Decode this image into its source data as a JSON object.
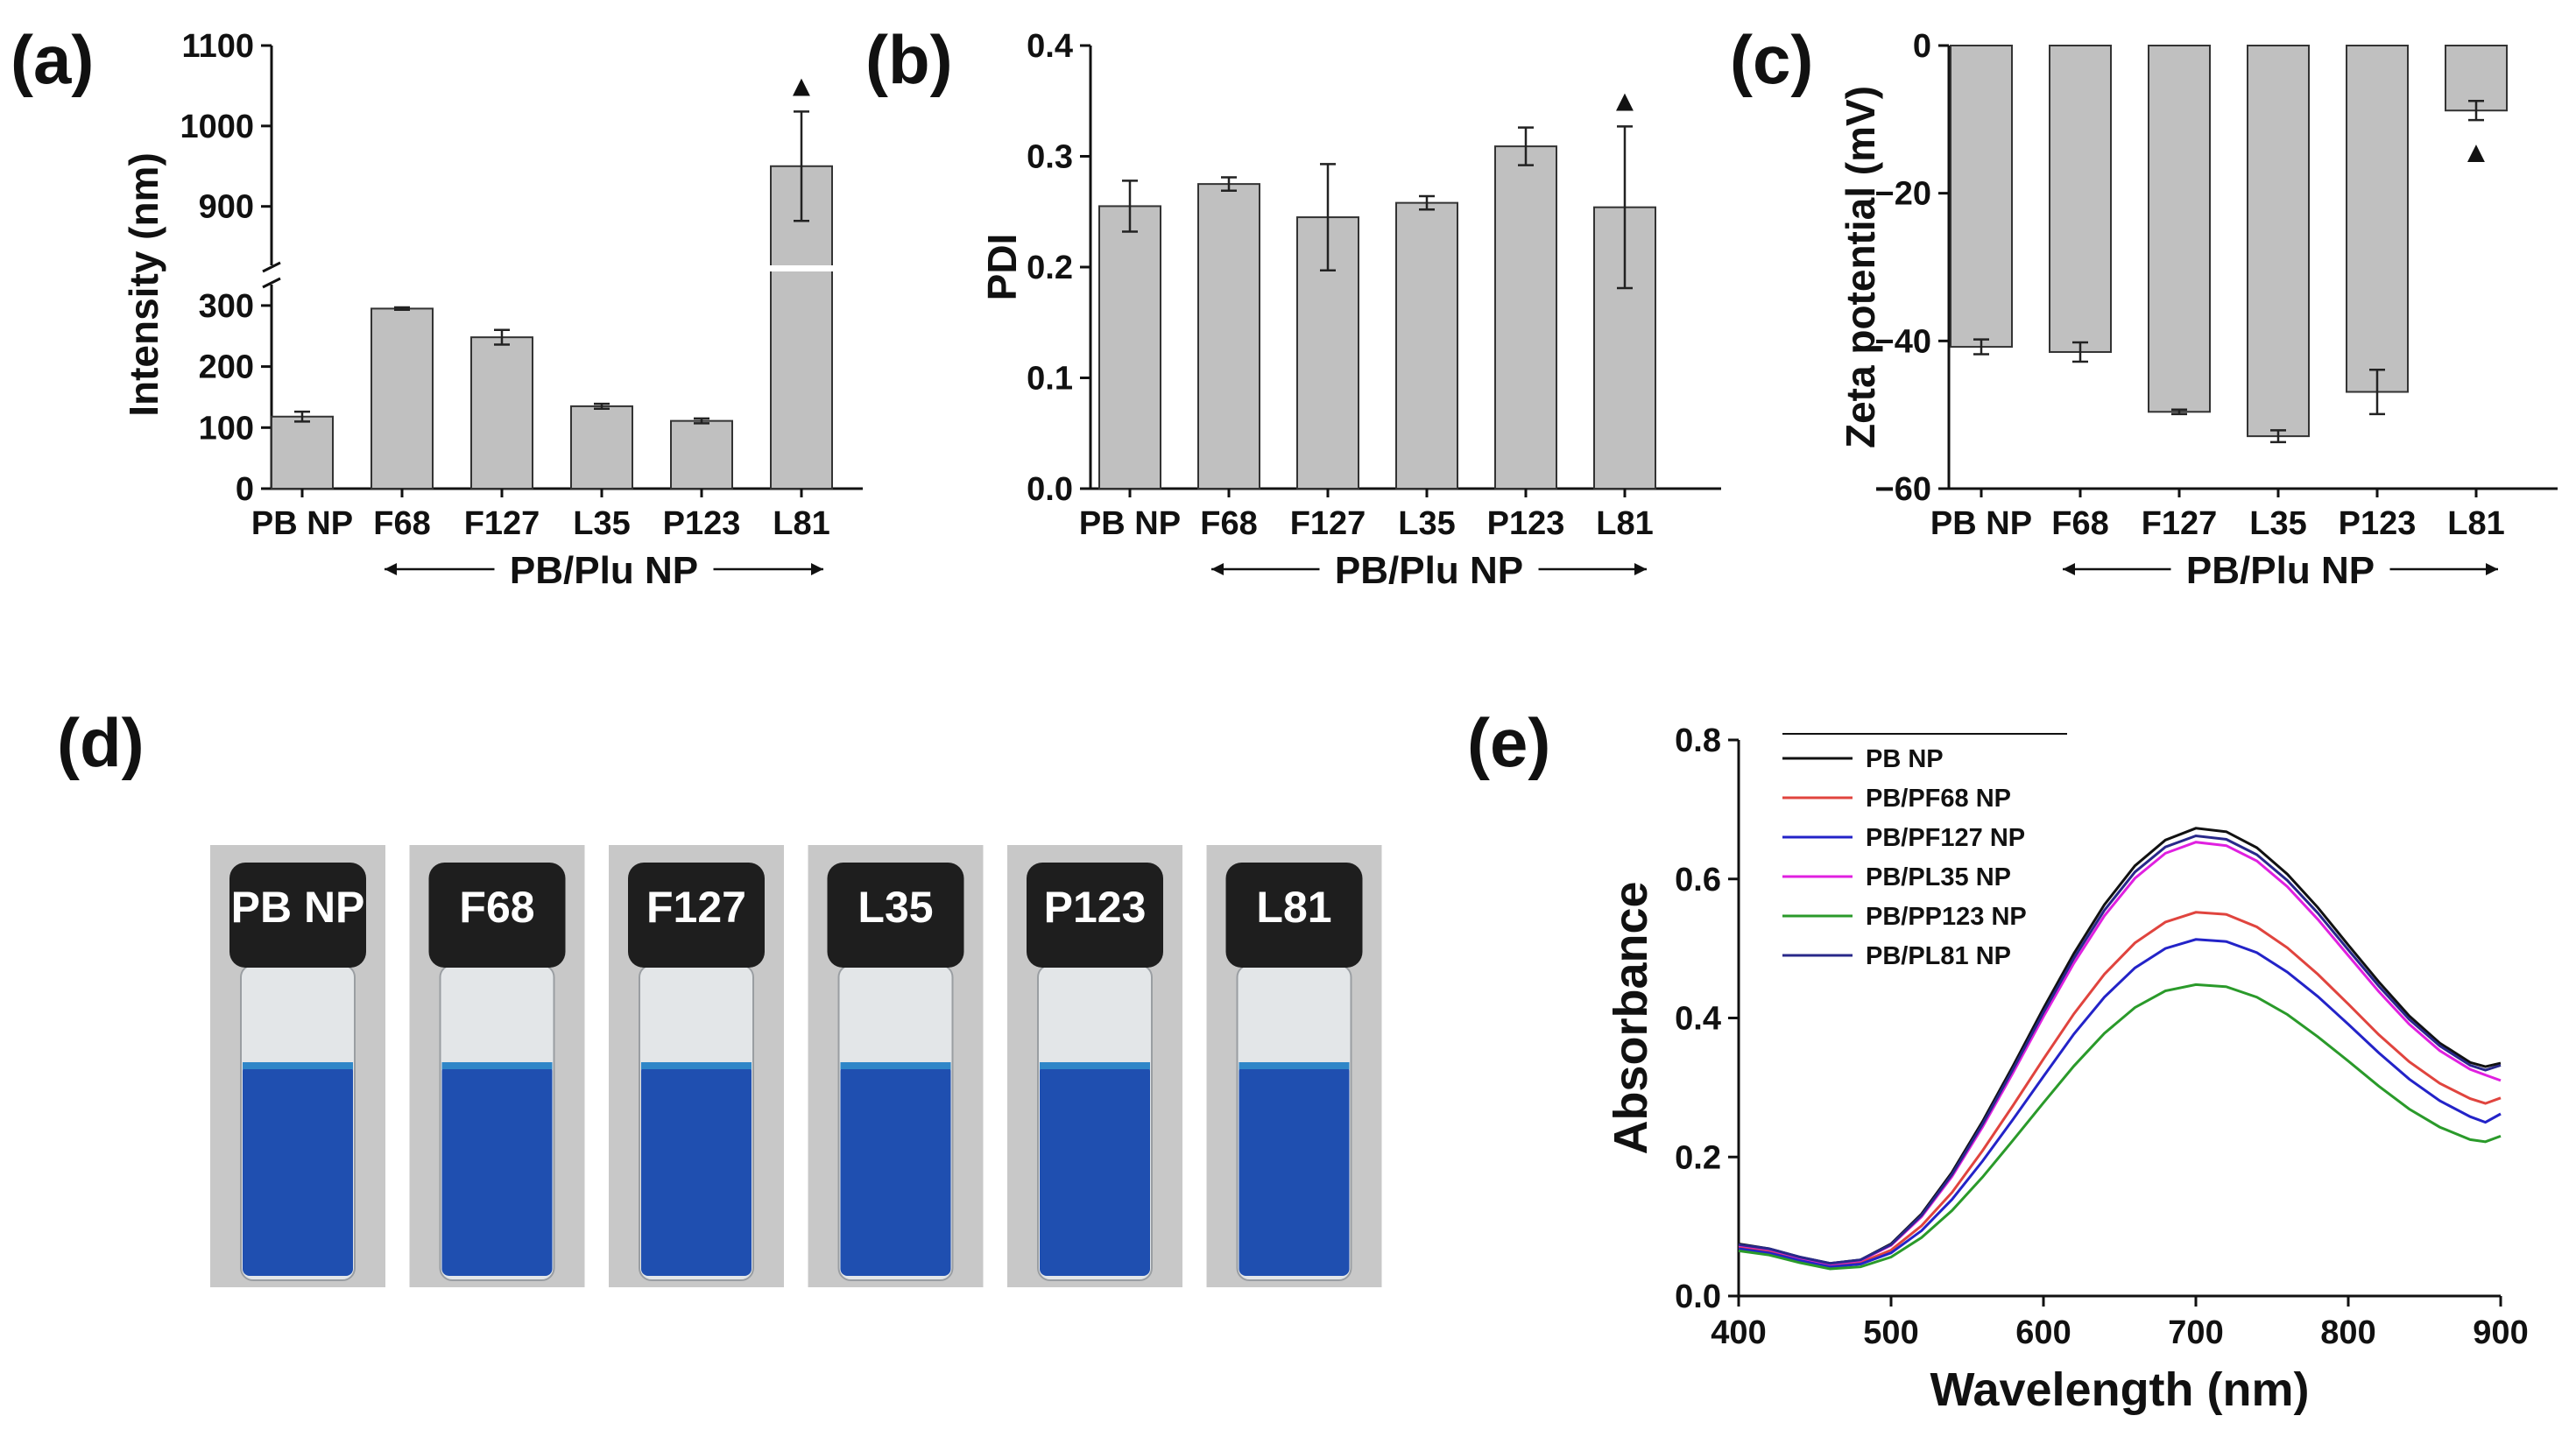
{
  "figure": {
    "panels": {
      "a": "(a)",
      "b": "(b)",
      "c": "(c)",
      "d": "(d)",
      "e": "(e)"
    },
    "colors": {
      "bar_fill": "#c0c0c0",
      "bar_stroke": "#333333",
      "axis": "#111111",
      "vial_background": "#c8c8c8",
      "vial_liquid": "#1f4fb0",
      "vial_cap": "#1e1e1e"
    }
  },
  "chart_data": [
    {
      "id": "a",
      "type": "bar",
      "title": "",
      "xlabel": "",
      "ylabel": "Intensity (nm)",
      "group_label": "PB/Plu NP",
      "group_start": "F68",
      "categories": [
        "PB NP",
        "F68",
        "F127",
        "L35",
        "P123",
        "L81"
      ],
      "values": [
        118,
        295,
        248,
        135,
        111,
        950
      ],
      "errors": [
        8,
        2,
        12,
        4,
        4,
        68
      ],
      "axis_break": {
        "lower_ylim": [
          0,
          330
        ],
        "upper_ylim": [
          830,
          1100
        ]
      },
      "y_ticks": [
        0,
        100,
        200,
        300,
        900,
        1000,
        1100
      ],
      "markers": [
        {
          "category": "L81",
          "symbol": "▲",
          "position": "above"
        }
      ]
    },
    {
      "id": "b",
      "type": "bar",
      "title": "",
      "xlabel": "",
      "ylabel": "PDI",
      "group_label": "PB/Plu NP",
      "group_start": "F68",
      "categories": [
        "PB NP",
        "F68",
        "F127",
        "L35",
        "P123",
        "L81"
      ],
      "values": [
        0.255,
        0.275,
        0.245,
        0.258,
        0.309,
        0.254
      ],
      "errors": [
        0.023,
        0.006,
        0.048,
        0.006,
        0.017,
        0.073
      ],
      "ylim": [
        0,
        0.4
      ],
      "y_ticks": [
        "0.0",
        "0.1",
        "0.2",
        "0.3",
        "0.4"
      ],
      "markers": [
        {
          "category": "L81",
          "symbol": "▲",
          "position": "above"
        }
      ]
    },
    {
      "id": "c",
      "type": "bar",
      "title": "",
      "xlabel": "",
      "ylabel": "Zeta potential (mV)",
      "group_label": "PB/Plu NP",
      "group_start": "F68",
      "categories": [
        "PB NP",
        "F68",
        "F127",
        "L35",
        "P123",
        "L81"
      ],
      "values": [
        -40.8,
        -41.5,
        -49.6,
        -52.9,
        -46.9,
        -8.8
      ],
      "errors": [
        1.0,
        1.3,
        0.3,
        0.8,
        3.0,
        1.3
      ],
      "ylim": [
        -60,
        0
      ],
      "y_ticks": [
        "−60",
        "−40",
        "−20",
        "0"
      ],
      "markers": [
        {
          "category": "L81",
          "symbol": "▲",
          "position": "below"
        }
      ]
    },
    {
      "id": "e",
      "type": "line",
      "title": "",
      "xlabel": "Wavelength (nm)",
      "ylabel": "Absorbance",
      "xlim": [
        400,
        900
      ],
      "ylim": [
        0,
        0.8
      ],
      "x_ticks": [
        400,
        500,
        600,
        700,
        800,
        900
      ],
      "y_ticks": [
        "0.0",
        "0.2",
        "0.4",
        "0.6",
        "0.8"
      ],
      "legend_position": "top-left",
      "x": [
        400,
        420,
        440,
        460,
        480,
        500,
        520,
        540,
        560,
        580,
        600,
        620,
        640,
        660,
        680,
        700,
        720,
        740,
        760,
        780,
        800,
        820,
        840,
        860,
        880,
        890,
        900
      ],
      "series": [
        {
          "name": "PB NP",
          "color": "#111111",
          "values": [
            0.075,
            0.068,
            0.056,
            0.047,
            0.052,
            0.075,
            0.118,
            0.178,
            0.251,
            0.331,
            0.414,
            0.493,
            0.563,
            0.619,
            0.656,
            0.673,
            0.668,
            0.645,
            0.607,
            0.559,
            0.505,
            0.452,
            0.403,
            0.364,
            0.336,
            0.33,
            0.335
          ]
        },
        {
          "name": "PB/PF68 NP",
          "color": "#e0443e",
          "values": [
            0.07,
            0.064,
            0.053,
            0.044,
            0.048,
            0.066,
            0.101,
            0.149,
            0.209,
            0.274,
            0.341,
            0.406,
            0.463,
            0.508,
            0.538,
            0.552,
            0.549,
            0.531,
            0.501,
            0.463,
            0.42,
            0.376,
            0.337,
            0.306,
            0.284,
            0.277,
            0.285
          ]
        },
        {
          "name": "PB/PF127 NP",
          "color": "#2323c8",
          "values": [
            0.068,
            0.062,
            0.051,
            0.042,
            0.046,
            0.062,
            0.094,
            0.139,
            0.194,
            0.254,
            0.316,
            0.377,
            0.43,
            0.472,
            0.5,
            0.513,
            0.51,
            0.494,
            0.466,
            0.431,
            0.391,
            0.35,
            0.312,
            0.281,
            0.258,
            0.25,
            0.262
          ]
        },
        {
          "name": "PB/PL35 NP",
          "color": "#e020e0",
          "values": [
            0.073,
            0.067,
            0.055,
            0.046,
            0.051,
            0.073,
            0.114,
            0.172,
            0.243,
            0.321,
            0.402,
            0.479,
            0.547,
            0.601,
            0.637,
            0.653,
            0.648,
            0.626,
            0.589,
            0.542,
            0.49,
            0.438,
            0.391,
            0.353,
            0.326,
            0.318,
            0.31
          ]
        },
        {
          "name": "PB/PP123 NP",
          "color": "#2a9a2a",
          "values": [
            0.065,
            0.059,
            0.048,
            0.039,
            0.042,
            0.056,
            0.084,
            0.123,
            0.171,
            0.224,
            0.278,
            0.331,
            0.378,
            0.415,
            0.439,
            0.448,
            0.445,
            0.43,
            0.405,
            0.373,
            0.338,
            0.302,
            0.269,
            0.243,
            0.225,
            0.222,
            0.23
          ]
        },
        {
          "name": "PB/PL81 NP",
          "color": "#28288a",
          "values": [
            0.074,
            0.068,
            0.056,
            0.047,
            0.052,
            0.074,
            0.116,
            0.175,
            0.247,
            0.326,
            0.408,
            0.486,
            0.555,
            0.61,
            0.646,
            0.662,
            0.657,
            0.635,
            0.598,
            0.551,
            0.498,
            0.446,
            0.398,
            0.36,
            0.332,
            0.325,
            0.332
          ]
        }
      ]
    }
  ],
  "vials": [
    {
      "label": "PB NP"
    },
    {
      "label": "F68"
    },
    {
      "label": "F127"
    },
    {
      "label": "L35"
    },
    {
      "label": "P123"
    },
    {
      "label": "L81"
    }
  ]
}
